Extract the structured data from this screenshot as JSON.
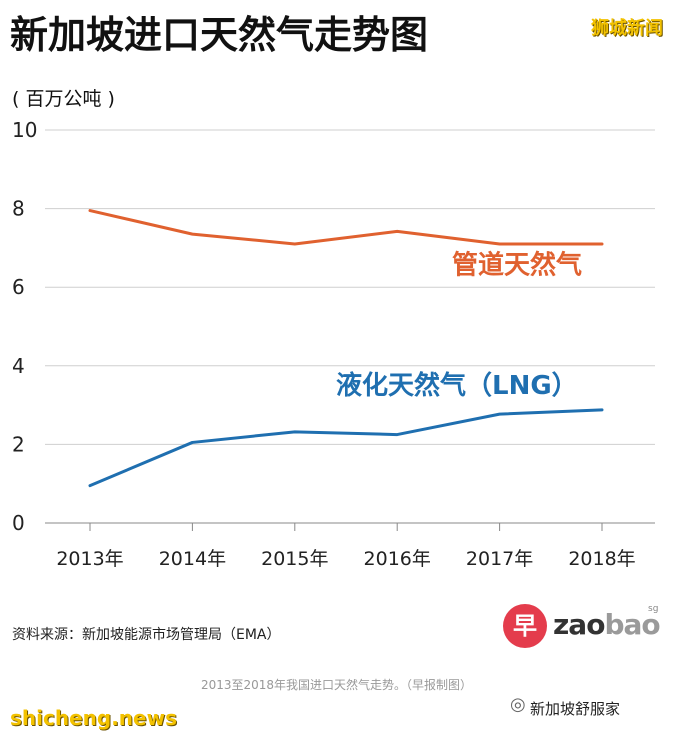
{
  "title": "新加坡进口天然气走势图",
  "brand_top": "狮城新闻",
  "unit_label": "( 百万公吨 )",
  "source": "资料来源：新加坡能源市场管理局（EMA）",
  "logo": {
    "mark": "早",
    "text_a": "zao",
    "text_b": "bao",
    "sup": "sg"
  },
  "caption": "2013至2018年我国进口天然气走势。（早报制图）",
  "watermark_left": "shicheng.news",
  "watermark_right": "新加坡舒服家",
  "colors": {
    "pipeline": "#e0612f",
    "lng": "#1f6fb0",
    "grid": "#cfcfcf",
    "brand_yellow": "#f3c200"
  },
  "chart_data": {
    "type": "line",
    "categories": [
      "2013年",
      "2014年",
      "2015年",
      "2016年",
      "2017年",
      "2018年"
    ],
    "series": [
      {
        "name": "管道天然气",
        "values": [
          7.95,
          7.35,
          7.1,
          7.42,
          7.1,
          7.1
        ]
      },
      {
        "name": "液化天然气（LNG）",
        "values": [
          0.95,
          2.05,
          2.32,
          2.25,
          2.77,
          2.88
        ]
      }
    ],
    "ylim": [
      0,
      10
    ],
    "yticks": [
      0,
      2,
      4,
      6,
      8,
      10
    ],
    "grid": true
  }
}
